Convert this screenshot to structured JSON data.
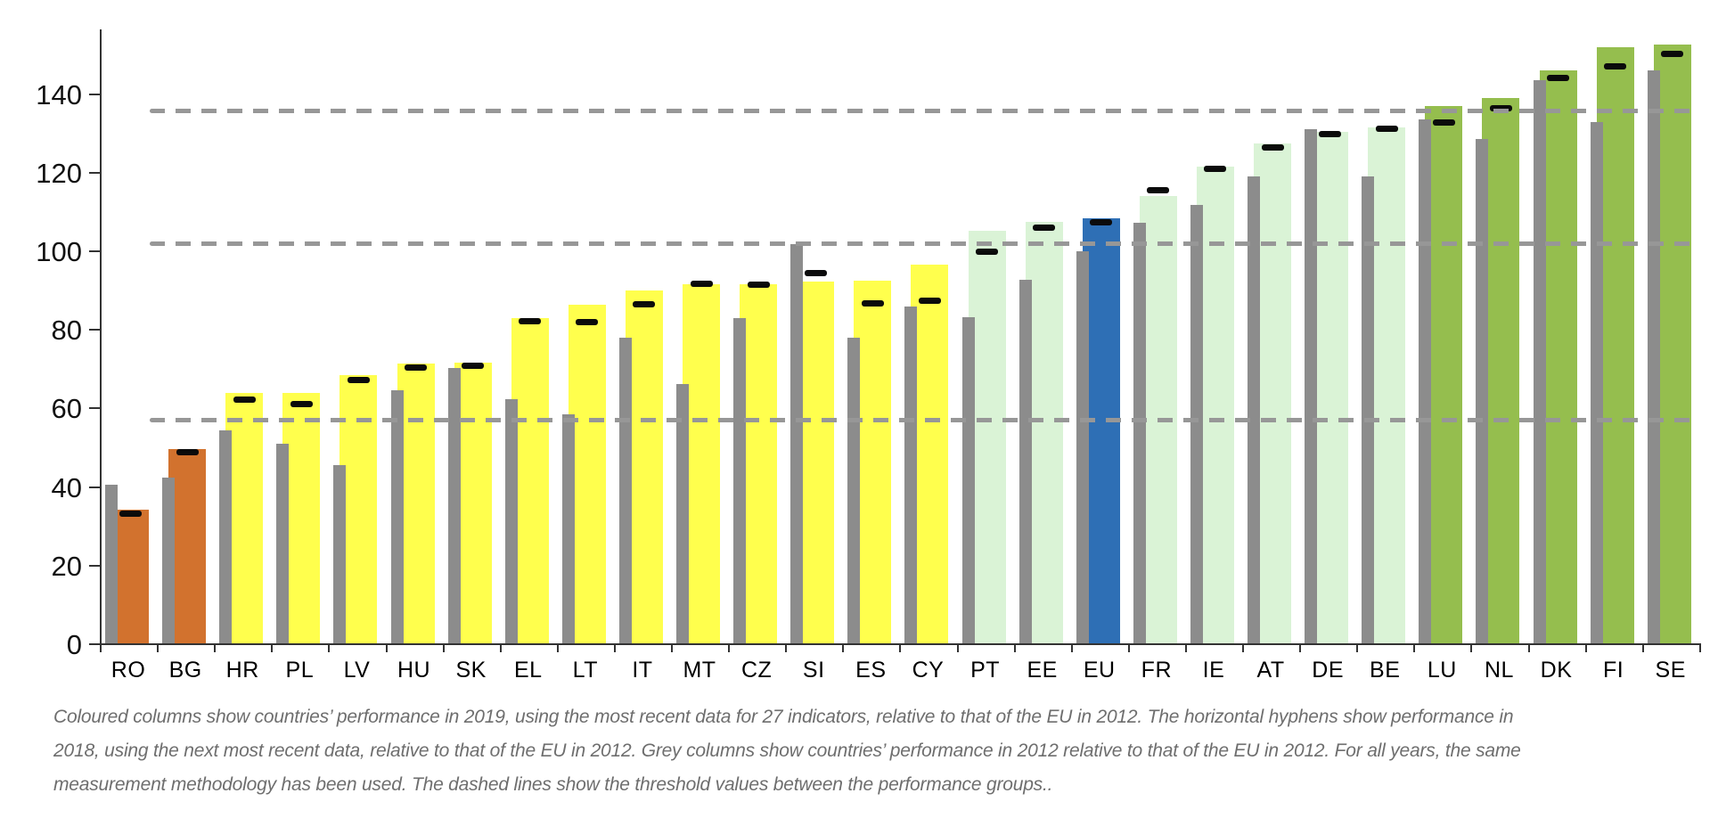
{
  "chart_data": {
    "type": "bar",
    "title": "",
    "xlabel": "",
    "ylabel": "",
    "categories": [
      "RO",
      "BG",
      "HR",
      "PL",
      "LV",
      "HU",
      "SK",
      "EL",
      "LT",
      "IT",
      "MT",
      "CZ",
      "SI",
      "ES",
      "CY",
      "PT",
      "EE",
      "EU",
      "FR",
      "IE",
      "AT",
      "DE",
      "BE",
      "LU",
      "NL",
      "DK",
      "FI",
      "SE"
    ],
    "series": [
      {
        "name": "Performance in 2019 (coloured columns)",
        "values": [
          34.3,
          49.6,
          64.0,
          64.0,
          68.5,
          71.5,
          71.6,
          83.0,
          86.5,
          90.0,
          91.5,
          91.5,
          92.2,
          92.6,
          96.5,
          105.3,
          107.5,
          108.3,
          114.0,
          121.5,
          127.5,
          130.4,
          131.5,
          137.0,
          139.0,
          146.0,
          152.0,
          152.6
        ]
      },
      {
        "name": "Performance in 2012 (grey columns)",
        "values": [
          40.5,
          42.5,
          54.4,
          51.0,
          45.6,
          64.6,
          70.2,
          62.4,
          58.5,
          78.0,
          66.3,
          83.0,
          101.8,
          78.1,
          86.0,
          83.3,
          92.7,
          100.0,
          107.2,
          111.9,
          119.0,
          131.0,
          119.0,
          133.6,
          128.5,
          143.6,
          132.8,
          146.0
        ]
      },
      {
        "name": "Performance in 2018 (horizontal hyphens)",
        "values": [
          33.2,
          48.9,
          62.3,
          61.0,
          67.2,
          70.5,
          70.9,
          82.3,
          81.9,
          86.5,
          91.8,
          91.4,
          94.5,
          86.7,
          87.4,
          100.0,
          106.0,
          107.4,
          115.5,
          121.0,
          126.5,
          129.9,
          131.2,
          132.7,
          136.5,
          144.0,
          147.0,
          150.2
        ]
      }
    ],
    "country_groups": [
      "modest",
      "modest",
      "moderate",
      "moderate",
      "moderate",
      "moderate",
      "moderate",
      "moderate",
      "moderate",
      "moderate",
      "moderate",
      "moderate",
      "moderate",
      "moderate",
      "moderate",
      "strong",
      "strong",
      "eu",
      "strong",
      "strong",
      "strong",
      "strong",
      "strong",
      "leader",
      "leader",
      "leader",
      "leader",
      "leader"
    ],
    "group_colors": {
      "modest": "#D2722E",
      "moderate": "#FFFF4D",
      "strong": "#DAF3D6",
      "eu": "#2E6FB5",
      "leader": "#95BE4E"
    },
    "grey_color": "#8C8C8C",
    "hyphen_color": "#0b0b0b",
    "dash_color": "#979797",
    "thresholds": [
      57.0,
      102.0,
      135.7
    ],
    "yticks": [
      0,
      20,
      40,
      60,
      80,
      100,
      120,
      140
    ],
    "ylim": [
      0,
      156
    ],
    "grid": false,
    "legend_position": "none"
  },
  "caption": {
    "lines": [
      "Coloured columns show countries’ performance in 2019, using the most recent data for 27 indicators, relative to that of the EU in 2012. The horizontal hyphens show performance in",
      "2018, using the next most recent data, relative to that of the EU in 2012. Grey columns show countries’ performance in 2012 relative to that of the EU in 2012. For all years, the same",
      "measurement methodology has been used. The dashed lines show the threshold values between the performance groups.."
    ]
  }
}
